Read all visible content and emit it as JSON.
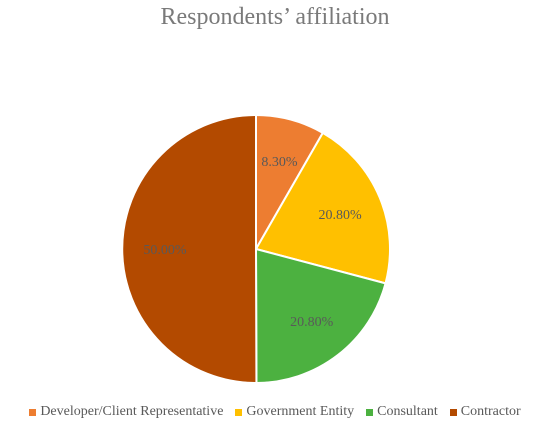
{
  "chart_data": {
    "type": "pie",
    "title": "Respondents’ affiliation",
    "categories": [
      "Developer/Client Representative",
      "Government Entity",
      "Consultant",
      "Contractor"
    ],
    "values": [
      8.3,
      20.8,
      20.8,
      50.0
    ],
    "data_labels": [
      "8.30%",
      "20.80%",
      "20.80%",
      "50.00%"
    ],
    "colors": [
      "#ED7D31",
      "#FFC000",
      "#4CB140",
      "#B34A00"
    ],
    "label_colors": [
      "#595959",
      "#595959",
      "#595959",
      "#C0504D"
    ],
    "legend_position": "bottom"
  }
}
